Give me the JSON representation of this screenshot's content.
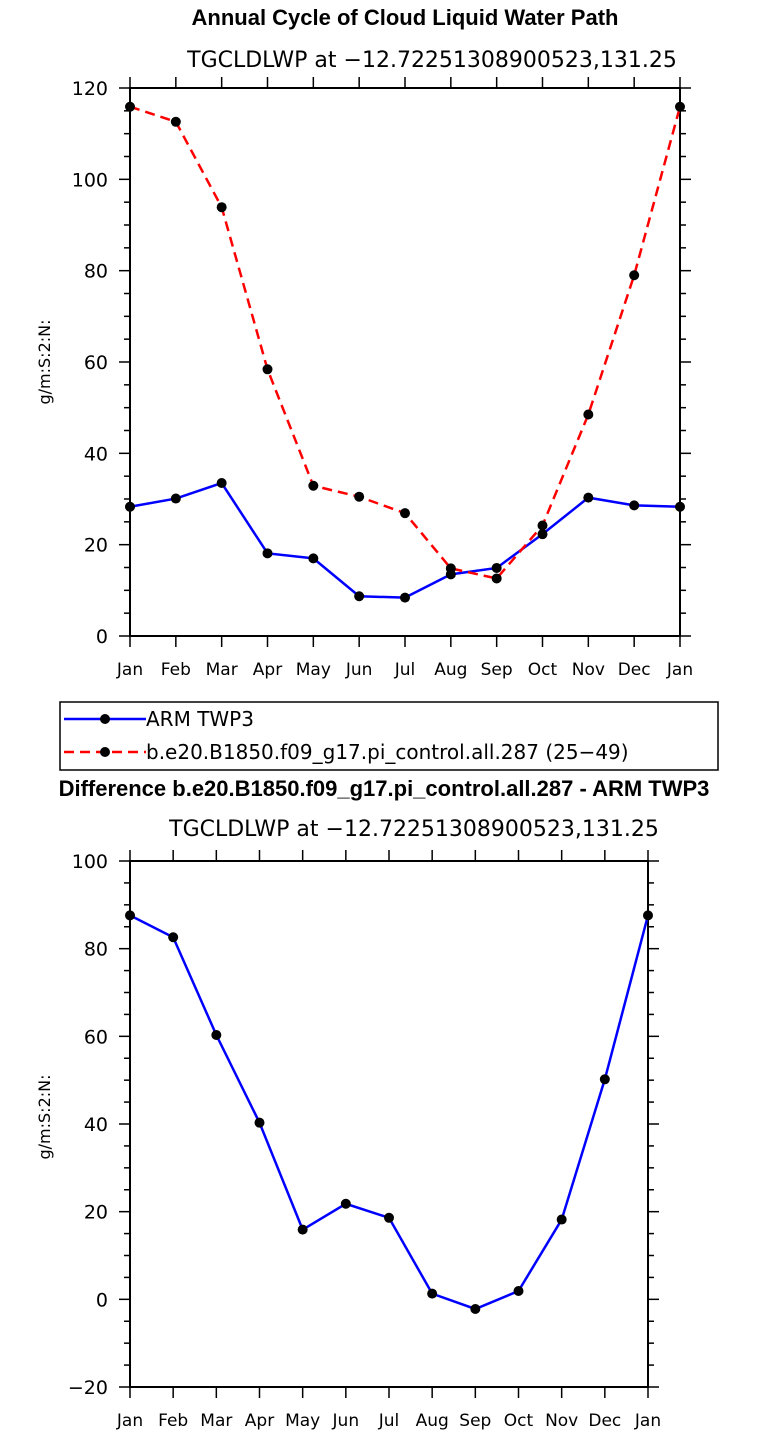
{
  "chart_data": [
    {
      "type": "line",
      "title": "Annual Cycle of Cloud Liquid Water Path",
      "subtitle": "TGCLDLWP at −12.72251308900523,131.25",
      "ylabel": "g/m:S:2:N:",
      "xlabel": "",
      "categories": [
        "Jan",
        "Feb",
        "Mar",
        "Apr",
        "May",
        "Jun",
        "Jul",
        "Aug",
        "Sep",
        "Oct",
        "Nov",
        "Dec",
        "Jan"
      ],
      "ylim": [
        0,
        120
      ],
      "yticks": [
        "0",
        "20",
        "40",
        "60",
        "80",
        "100",
        "120"
      ],
      "yticks_values": [
        0,
        20,
        40,
        60,
        80,
        100,
        120
      ],
      "series": [
        {
          "name": "ARM TWP3",
          "color": "#0000ff",
          "dash": "solid",
          "values": [
            28.3,
            30.1,
            33.5,
            18.1,
            17.0,
            8.7,
            8.4,
            13.5,
            14.9,
            22.3,
            30.3,
            28.6,
            28.3
          ]
        },
        {
          "name": "b.e20.B1850.f09_g17.pi_control.all.287 (25−49)",
          "color": "#ff0000",
          "dash": "dashed",
          "values": [
            115.9,
            112.6,
            93.9,
            58.4,
            32.9,
            30.5,
            26.9,
            14.8,
            12.6,
            24.2,
            48.5,
            79.0,
            115.9
          ]
        }
      ]
    },
    {
      "type": "line",
      "title": "Difference b.e20.B1850.f09_g17.pi_control.all.287 - ARM TWP3",
      "subtitle": "TGCLDLWP at −12.72251308900523,131.25",
      "ylabel": "g/m:S:2:N:",
      "xlabel": "",
      "categories": [
        "Jan",
        "Feb",
        "Mar",
        "Apr",
        "May",
        "Jun",
        "Jul",
        "Aug",
        "Sep",
        "Oct",
        "Nov",
        "Dec",
        "Jan"
      ],
      "ylim": [
        -20,
        100
      ],
      "yticks": [
        "−20",
        "0",
        "20",
        "40",
        "60",
        "80",
        "100"
      ],
      "yticks_values": [
        -20,
        0,
        20,
        40,
        60,
        80,
        100
      ],
      "series": [
        {
          "name": "Difference",
          "color": "#0000ff",
          "dash": "solid",
          "values": [
            87.6,
            82.6,
            60.3,
            40.3,
            15.9,
            21.8,
            18.6,
            1.3,
            -2.2,
            1.9,
            18.2,
            50.2,
            87.6
          ]
        }
      ]
    }
  ],
  "legend": {
    "items": [
      {
        "label": "ARM TWP3",
        "color": "#0000ff",
        "dash": "solid"
      },
      {
        "label": "b.e20.B1850.f09_g17.pi_control.all.287 (25−49)",
        "color": "#ff0000",
        "dash": "dashed"
      }
    ]
  }
}
